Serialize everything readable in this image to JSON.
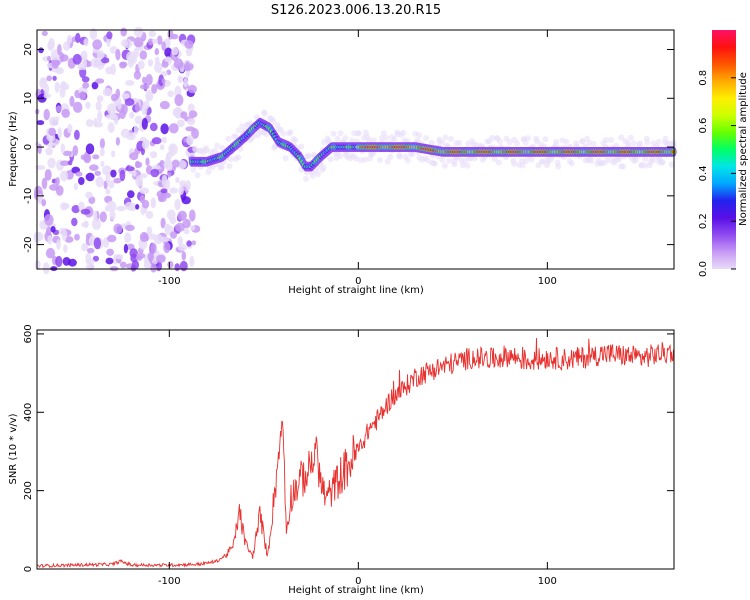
{
  "title": "S126.2023.006.13.20.R15",
  "chart_data": [
    {
      "type": "heatmap",
      "xlabel": "Height of straight line (km)",
      "ylabel": "Frequency (Hz)",
      "xlim": [
        -170,
        167
      ],
      "ylim": [
        -25,
        24
      ],
      "x_ticks": [
        {
          "value": -100,
          "label": "-100"
        },
        {
          "value": 0,
          "label": "0"
        },
        {
          "value": 100,
          "label": "100"
        }
      ],
      "y_ticks": [
        {
          "value": -20,
          "label": "-20"
        },
        {
          "value": -10,
          "label": "-10"
        },
        {
          "value": 0,
          "label": "0"
        },
        {
          "value": 10,
          "label": "10"
        },
        {
          "value": 20,
          "label": "20"
        }
      ],
      "noise_region_x": [
        -170,
        -86
      ],
      "signal_track": {
        "x": [
          -88,
          -80,
          -72,
          -66,
          -60,
          -55,
          -52,
          -47,
          -42,
          -36,
          -31,
          -28,
          -25,
          -20,
          -14,
          -8,
          0,
          10,
          20,
          30,
          45,
          60,
          80,
          100,
          120,
          140,
          160,
          167
        ],
        "y": [
          -3,
          -3,
          -2,
          0,
          2,
          4,
          5,
          4,
          1,
          0,
          -2,
          -4,
          -4,
          -2,
          0,
          0,
          0,
          0,
          0,
          0,
          -1,
          -1,
          -1,
          -1,
          -1,
          -1,
          -1,
          -1
        ]
      },
      "colorbar": {
        "label": "Normalized spectral amplitude",
        "range": [
          0,
          1
        ],
        "ticks": [
          {
            "value": 0.0,
            "label": "0.0"
          },
          {
            "value": 0.2,
            "label": "0.2"
          },
          {
            "value": 0.4,
            "label": "0.4"
          },
          {
            "value": 0.6,
            "label": "0.6"
          },
          {
            "value": 0.8,
            "label": "0.8"
          }
        ],
        "colors": [
          "#e8ddf8",
          "#c79af5",
          "#8f4af0",
          "#5a10e6",
          "#2222ee",
          "#00a6ff",
          "#00e6e6",
          "#00ff66",
          "#66ff00",
          "#ccff00",
          "#ffee00",
          "#ffaa00",
          "#ff5500",
          "#ff1111",
          "#ff1166"
        ]
      }
    },
    {
      "type": "line",
      "xlabel": "Height of straight line (km)",
      "ylabel": "SNR (10 * v/v)",
      "xlim": [
        -170,
        167
      ],
      "ylim": [
        0,
        610
      ],
      "x_ticks": [
        {
          "value": -100,
          "label": "-100"
        },
        {
          "value": 0,
          "label": "0"
        },
        {
          "value": 100,
          "label": "100"
        }
      ],
      "y_ticks": [
        {
          "value": 0,
          "label": "0"
        },
        {
          "value": 200,
          "label": "200"
        },
        {
          "value": 400,
          "label": "400"
        },
        {
          "value": 600,
          "label": "600"
        }
      ],
      "series": [
        {
          "color": "#e8312e",
          "x": [
            -170,
            -150,
            -130,
            -126,
            -120,
            -100,
            -85,
            -80,
            -75,
            -70,
            -66,
            -63,
            -60,
            -56,
            -52,
            -48,
            -44,
            -40,
            -38,
            -36,
            -34,
            -30,
            -26,
            -22,
            -20,
            -17,
            -14,
            -10,
            -6,
            -2,
            2,
            6,
            10,
            14,
            18,
            22,
            26,
            30,
            40,
            50,
            60,
            70,
            80,
            90,
            100,
            110,
            120,
            130,
            140,
            150,
            160,
            167
          ],
          "y": [
            8,
            10,
            12,
            20,
            10,
            10,
            12,
            15,
            20,
            35,
            60,
            150,
            70,
            30,
            140,
            30,
            210,
            385,
            90,
            180,
            200,
            230,
            250,
            320,
            220,
            180,
            200,
            235,
            260,
            290,
            320,
            360,
            380,
            410,
            440,
            450,
            470,
            490,
            510,
            525,
            540,
            535,
            545,
            530,
            540,
            535,
            540,
            550,
            545,
            540,
            550,
            555
          ]
        }
      ]
    }
  ]
}
